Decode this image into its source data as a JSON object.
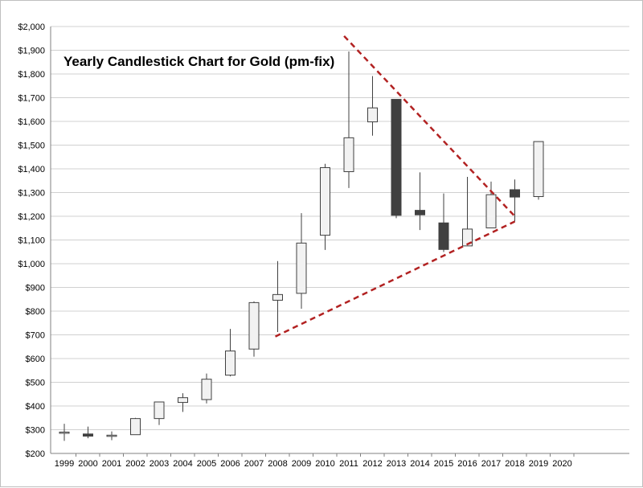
{
  "chart_data": {
    "type": "candlestick",
    "title": "Yearly Candlestick Chart for Gold (pm-fix)",
    "xlabel": "",
    "ylabel": "",
    "ylim": [
      200,
      2000
    ],
    "y_ticks": [
      "$200",
      "$300",
      "$400",
      "$500",
      "$600",
      "$700",
      "$800",
      "$900",
      "$1,000",
      "$1,100",
      "$1,200",
      "$1,300",
      "$1,400",
      "$1,500",
      "$1,600",
      "$1,700",
      "$1,800",
      "$1,900",
      "$2,000"
    ],
    "categories": [
      "1999",
      "2000",
      "2001",
      "2002",
      "2003",
      "2004",
      "2005",
      "2006",
      "2007",
      "2008",
      "2009",
      "2010",
      "2011",
      "2012",
      "2013",
      "2014",
      "2015",
      "2016",
      "2017",
      "2018",
      "2019",
      "2020"
    ],
    "grid": true,
    "candles": [
      {
        "year": "1999",
        "open": 288,
        "high": 325,
        "low": 253,
        "close": 290
      },
      {
        "year": "2000",
        "open": 282,
        "high": 313,
        "low": 264,
        "close": 273
      },
      {
        "year": "2001",
        "open": 272,
        "high": 293,
        "low": 256,
        "close": 277
      },
      {
        "year": "2002",
        "open": 279,
        "high": 350,
        "low": 278,
        "close": 347
      },
      {
        "year": "2003",
        "open": 347,
        "high": 417,
        "low": 320,
        "close": 417
      },
      {
        "year": "2004",
        "open": 415,
        "high": 454,
        "low": 375,
        "close": 435
      },
      {
        "year": "2005",
        "open": 427,
        "high": 537,
        "low": 411,
        "close": 513
      },
      {
        "year": "2006",
        "open": 530,
        "high": 725,
        "low": 525,
        "close": 632
      },
      {
        "year": "2007",
        "open": 640,
        "high": 841,
        "low": 608,
        "close": 836
      },
      {
        "year": "2008",
        "open": 846,
        "high": 1011,
        "low": 712,
        "close": 870
      },
      {
        "year": "2009",
        "open": 875,
        "high": 1213,
        "low": 810,
        "close": 1087
      },
      {
        "year": "2010",
        "open": 1120,
        "high": 1421,
        "low": 1058,
        "close": 1405
      },
      {
        "year": "2011",
        "open": 1388,
        "high": 1895,
        "low": 1319,
        "close": 1531
      },
      {
        "year": "2012",
        "open": 1598,
        "high": 1791,
        "low": 1540,
        "close": 1657
      },
      {
        "year": "2013",
        "open": 1693,
        "high": 1693,
        "low": 1192,
        "close": 1204
      },
      {
        "year": "2014",
        "open": 1225,
        "high": 1385,
        "low": 1142,
        "close": 1206
      },
      {
        "year": "2015",
        "open": 1172,
        "high": 1296,
        "low": 1049,
        "close": 1060
      },
      {
        "year": "2016",
        "open": 1075,
        "high": 1366,
        "low": 1077,
        "close": 1146
      },
      {
        "year": "2017",
        "open": 1151,
        "high": 1346,
        "low": 1151,
        "close": 1291
      },
      {
        "year": "2018",
        "open": 1312,
        "high": 1355,
        "low": 1178,
        "close": 1281
      },
      {
        "year": "2019",
        "open": 1283,
        "high": 1516,
        "low": 1270,
        "close": 1515
      }
    ],
    "trendlines": [
      {
        "name": "upper",
        "x_start": 2010.8,
        "y_start": 1960,
        "x_end": 2018,
        "y_end": 1200
      },
      {
        "name": "lower",
        "x_start": 2007.9,
        "y_start": 693,
        "x_end": 2018,
        "y_end": 1178
      }
    ],
    "colors": {
      "bull_fill": "#f2f2f2",
      "bear_fill": "#404040",
      "trend": "#b22222",
      "grid": "#d0d0d0"
    }
  }
}
